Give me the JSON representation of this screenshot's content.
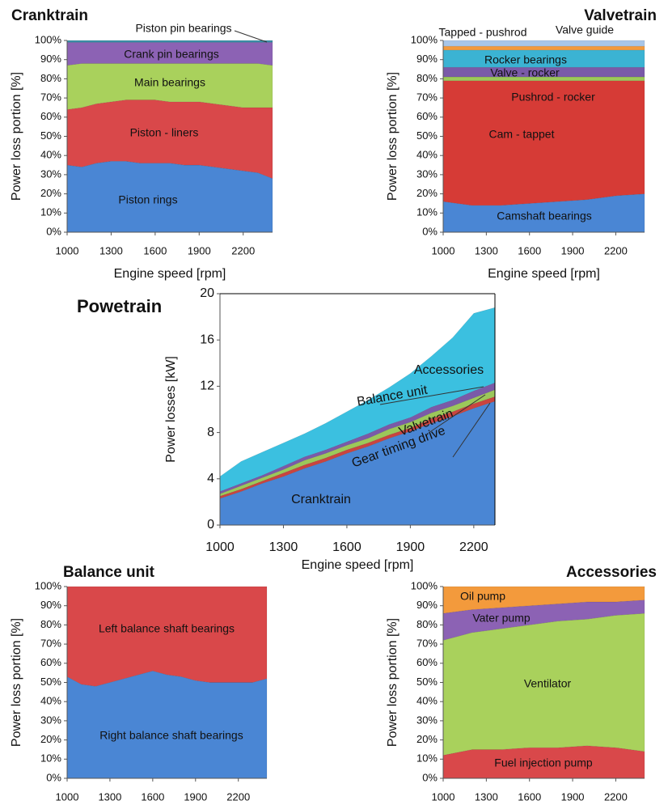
{
  "chart_data": [
    {
      "type": "area",
      "stacked": true,
      "title": "Cranktrain",
      "xlabel": "Engine speed  [rpm]",
      "ylabel": "Power loss portion [%]",
      "x": [
        1000,
        1100,
        1200,
        1300,
        1400,
        1500,
        1600,
        1700,
        1800,
        1900,
        2000,
        2100,
        2200,
        2300,
        2400
      ],
      "xlim": [
        1000,
        2400
      ],
      "ylim": [
        0,
        100
      ],
      "xticks": [
        1000,
        1300,
        1600,
        1900,
        2200
      ],
      "yticks": [
        {
          "value": 0,
          "label": "0%"
        },
        {
          "value": 10,
          "label": "10%"
        },
        {
          "value": 20,
          "label": "20%"
        },
        {
          "value": 30,
          "label": "30%"
        },
        {
          "value": 40,
          "label": "40%"
        },
        {
          "value": 50,
          "label": "50%"
        },
        {
          "value": 60,
          "label": "60%"
        },
        {
          "value": 70,
          "label": "70%"
        },
        {
          "value": 80,
          "label": "80%"
        },
        {
          "value": 90,
          "label": "90%"
        },
        {
          "value": 100,
          "label": "100%"
        }
      ],
      "series": [
        {
          "name": "Piston rings",
          "color": "#4a86d4",
          "values": [
            35,
            34,
            36,
            37,
            37,
            36,
            36,
            36,
            35,
            35,
            34,
            33,
            32,
            31,
            28
          ]
        },
        {
          "name": "Piston - liners",
          "color": "#d9484a",
          "values": [
            29,
            31,
            31,
            31,
            32,
            33,
            33,
            32,
            33,
            33,
            33,
            33,
            33,
            34,
            37
          ]
        },
        {
          "name": "Main bearings",
          "color": "#a9d15c",
          "values": [
            23,
            23,
            21,
            20,
            19,
            19,
            19,
            20,
            20,
            20,
            21,
            22,
            23,
            23,
            22
          ]
        },
        {
          "name": "Crank pin bearings",
          "color": "#8c62b4",
          "values": [
            12,
            11,
            11,
            11,
            11,
            11,
            11,
            11,
            11,
            11,
            11,
            11,
            11,
            11,
            12
          ]
        },
        {
          "name": "Piston pin bearings",
          "color": "#3a8ea6",
          "values": [
            1,
            1,
            1,
            1,
            1,
            1,
            1,
            1,
            1,
            1,
            1,
            1,
            1,
            1,
            1
          ]
        }
      ]
    },
    {
      "type": "area",
      "stacked": true,
      "title": "Valvetrain",
      "xlabel": "Engine speed  [rpm]",
      "ylabel": "Power loss portion [%]",
      "x": [
        1000,
        1200,
        1400,
        1600,
        1800,
        2000,
        2200,
        2400
      ],
      "xlim": [
        1000,
        2400
      ],
      "ylim": [
        0,
        100
      ],
      "xticks": [
        1000,
        1300,
        1600,
        1900,
        2200
      ],
      "yticks": [
        {
          "value": 0,
          "label": "0%"
        },
        {
          "value": 10,
          "label": "10%"
        },
        {
          "value": 20,
          "label": "20%"
        },
        {
          "value": 30,
          "label": "30%"
        },
        {
          "value": 40,
          "label": "40%"
        },
        {
          "value": 50,
          "label": "50%"
        },
        {
          "value": 60,
          "label": "60%"
        },
        {
          "value": 70,
          "label": "70%"
        },
        {
          "value": 80,
          "label": "80%"
        },
        {
          "value": 90,
          "label": "90%"
        },
        {
          "value": 100,
          "label": "100%"
        }
      ],
      "series": [
        {
          "name": "Camshaft bearings",
          "color": "#4a86d4",
          "values": [
            16,
            14,
            14,
            15,
            16,
            17,
            19,
            20
          ]
        },
        {
          "name": "Cam - tappet",
          "color": "#d63b36",
          "values": [
            63,
            65,
            65,
            64,
            63,
            62,
            60,
            59
          ]
        },
        {
          "name": "Pushrod - rocker",
          "color": "#9cc85a",
          "values": [
            2,
            2,
            2,
            2,
            2,
            2,
            2,
            2
          ]
        },
        {
          "name": "Valve - rocker",
          "color": "#7a5aa8",
          "values": [
            5,
            5,
            5,
            5,
            5,
            5,
            5,
            5
          ]
        },
        {
          "name": "Rocker bearings",
          "color": "#3bb3d3",
          "values": [
            9,
            9,
            9,
            9,
            9,
            9,
            9,
            9
          ]
        },
        {
          "name": "Tapped - pushrod",
          "color": "#f39a3c",
          "values": [
            2,
            2,
            2,
            2,
            2,
            2,
            2,
            2
          ]
        },
        {
          "name": "Valve guide",
          "color": "#a8c6e8",
          "values": [
            3,
            3,
            3,
            3,
            3,
            3,
            3,
            3
          ]
        }
      ]
    },
    {
      "type": "area",
      "stacked": true,
      "title": "Powetrain",
      "xlabel": "Engine speed [rpm]",
      "ylabel": "Power losses [kW]",
      "x": [
        1000,
        1100,
        1200,
        1300,
        1400,
        1500,
        1600,
        1700,
        1800,
        1900,
        2000,
        2100,
        2200,
        2300
      ],
      "xlim": [
        1000,
        2300
      ],
      "ylim": [
        0,
        20
      ],
      "xticks": [
        1000,
        1300,
        1600,
        1900,
        2200
      ],
      "yticks": [
        0,
        4,
        8,
        12,
        16,
        20
      ],
      "series": [
        {
          "name": "Cranktrain",
          "color": "#4a86d4",
          "values": [
            2.3,
            2.9,
            3.6,
            4.2,
            4.9,
            5.5,
            6.2,
            6.8,
            7.5,
            8.1,
            8.8,
            9.4,
            10.1,
            10.7
          ]
        },
        {
          "name": "Gear timing drive",
          "color": "#c9443f",
          "values": [
            0.2,
            0.2,
            0.2,
            0.3,
            0.3,
            0.3,
            0.3,
            0.3,
            0.3,
            0.3,
            0.4,
            0.4,
            0.4,
            0.4
          ]
        },
        {
          "name": "Valvetrain",
          "color": "#9cc85a",
          "values": [
            0.2,
            0.3,
            0.3,
            0.3,
            0.4,
            0.4,
            0.4,
            0.4,
            0.5,
            0.5,
            0.5,
            0.5,
            0.5,
            0.6
          ]
        },
        {
          "name": "Balance unit",
          "color": "#7a5aa8",
          "values": [
            0.2,
            0.2,
            0.2,
            0.3,
            0.3,
            0.3,
            0.3,
            0.4,
            0.4,
            0.4,
            0.5,
            0.5,
            0.6,
            0.6
          ]
        },
        {
          "name": "Accessories",
          "color": "#3bc0e0",
          "values": [
            1.3,
            1.9,
            2.0,
            2.0,
            2.0,
            2.3,
            2.6,
            2.9,
            3.2,
            3.8,
            4.4,
            5.4,
            6.7,
            6.5
          ]
        }
      ]
    },
    {
      "type": "area",
      "stacked": true,
      "title": "Balance unit",
      "ylabel": "Power loss portion [%]",
      "x": [
        1000,
        1100,
        1200,
        1300,
        1400,
        1500,
        1600,
        1700,
        1800,
        1900,
        2000,
        2100,
        2200,
        2300,
        2400
      ],
      "xlim": [
        1000,
        2400
      ],
      "ylim": [
        0,
        100
      ],
      "xticks": [
        1000,
        1300,
        1600,
        1900,
        2200
      ],
      "yticks": [
        {
          "value": 0,
          "label": "0%"
        },
        {
          "value": 10,
          "label": "10%"
        },
        {
          "value": 20,
          "label": "20%"
        },
        {
          "value": 30,
          "label": "30%"
        },
        {
          "value": 40,
          "label": "40%"
        },
        {
          "value": 50,
          "label": "50%"
        },
        {
          "value": 60,
          "label": "60%"
        },
        {
          "value": 70,
          "label": "70%"
        },
        {
          "value": 80,
          "label": "80%"
        },
        {
          "value": 90,
          "label": "90%"
        },
        {
          "value": 100,
          "label": "100%"
        }
      ],
      "series": [
        {
          "name": "Right balance shaft bearings",
          "color": "#4a86d4",
          "values": [
            53,
            49,
            48,
            50,
            52,
            54,
            56,
            54,
            53,
            51,
            50,
            50,
            50,
            50,
            52
          ]
        },
        {
          "name": "Left balance shaft bearings",
          "color": "#d9484a",
          "values": [
            47,
            51,
            52,
            50,
            48,
            46,
            44,
            46,
            47,
            49,
            50,
            50,
            50,
            50,
            48
          ]
        }
      ]
    },
    {
      "type": "area",
      "stacked": true,
      "title": "Accessories",
      "ylabel": "Power loss portion [%]",
      "x": [
        1000,
        1200,
        1400,
        1600,
        1800,
        2000,
        2200,
        2400
      ],
      "xlim": [
        1000,
        2400
      ],
      "ylim": [
        0,
        100
      ],
      "xticks": [
        1000,
        1300,
        1600,
        1900,
        2200
      ],
      "yticks": [
        {
          "value": 0,
          "label": "0%"
        },
        {
          "value": 10,
          "label": "10%"
        },
        {
          "value": 20,
          "label": "20%"
        },
        {
          "value": 30,
          "label": "30%"
        },
        {
          "value": 40,
          "label": "40%"
        },
        {
          "value": 50,
          "label": "50%"
        },
        {
          "value": 60,
          "label": "60%"
        },
        {
          "value": 70,
          "label": "70%"
        },
        {
          "value": 80,
          "label": "80%"
        },
        {
          "value": 90,
          "label": "90%"
        },
        {
          "value": 100,
          "label": "100%"
        }
      ],
      "series": [
        {
          "name": "Fuel injection pump",
          "color": "#d9484a",
          "values": [
            12,
            15,
            15,
            16,
            16,
            17,
            16,
            14
          ]
        },
        {
          "name": "Ventilator",
          "color": "#a9d15c",
          "values": [
            60,
            61,
            63,
            64,
            66,
            66,
            69,
            72
          ]
        },
        {
          "name": "Vater pump",
          "color": "#8c62b4",
          "values": [
            14,
            12,
            11,
            10,
            9,
            9,
            7,
            7
          ]
        },
        {
          "name": "Oil pump",
          "color": "#f39a3c",
          "values": [
            14,
            12,
            11,
            10,
            9,
            8,
            8,
            7
          ]
        }
      ]
    }
  ]
}
